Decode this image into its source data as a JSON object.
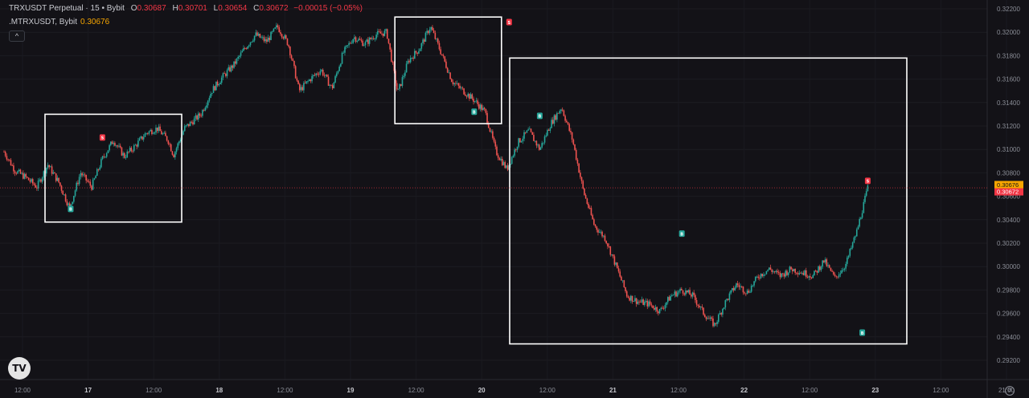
{
  "legend": {
    "symbol": "TRXUSDT Perpetual",
    "interval": "15",
    "exchange": "Bybit",
    "open_label": "O",
    "open": "0.30687",
    "high_label": "H",
    "high": "0.30701",
    "low_label": "L",
    "low": "0.30654",
    "close_label": "C",
    "close": "0.30672",
    "change": "−0.00015 (−0.05%)",
    "indicator": ".MTRXUSDT, Bybit",
    "indicator_value": "0.30676"
  },
  "controls": {
    "collapse_icon": "^",
    "logo_text": "TV",
    "settings_icon": "⚙"
  },
  "colors": {
    "background": "#131217",
    "up": "#26a69a",
    "down": "#ef5350",
    "box": "#ffffff",
    "price_line": "#f23645",
    "indicator_tag": "#f7a600"
  },
  "chart_data": {
    "type": "candlestick",
    "y_ticks": [
      "0.32200",
      "0.32000",
      "0.31800",
      "0.31600",
      "0.31400",
      "0.31200",
      "0.31000",
      "0.30800",
      "0.30600",
      "0.30400",
      "0.30200",
      "0.30000",
      "0.29800",
      "0.29600",
      "0.29400",
      "0.29200"
    ],
    "ylim": [
      0.2912,
      0.3227
    ],
    "x_ticks": [
      {
        "label": "12:00",
        "bold": false
      },
      {
        "label": "17",
        "bold": true
      },
      {
        "label": "12:00",
        "bold": false
      },
      {
        "label": "18",
        "bold": true
      },
      {
        "label": "12:00",
        "bold": false
      },
      {
        "label": "19",
        "bold": true
      },
      {
        "label": "12:00",
        "bold": false
      },
      {
        "label": "20",
        "bold": true
      },
      {
        "label": "12:00",
        "bold": false
      },
      {
        "label": "21",
        "bold": true
      },
      {
        "label": "12:00",
        "bold": false
      },
      {
        "label": "22",
        "bold": true
      },
      {
        "label": "12:00",
        "bold": false
      },
      {
        "label": "23",
        "bold": true
      },
      {
        "label": "12:00",
        "bold": false
      },
      {
        "label": "21:00",
        "bold": false
      }
    ],
    "x_range_hours": [
      0,
      160
    ],
    "path_knots": [
      [
        0,
        0.3098
      ],
      [
        2,
        0.3082
      ],
      [
        4,
        0.3076
      ],
      [
        6,
        0.3068
      ],
      [
        8,
        0.3087
      ],
      [
        10,
        0.3072
      ],
      [
        12,
        0.305
      ],
      [
        14,
        0.308
      ],
      [
        16,
        0.3068
      ],
      [
        18,
        0.3092
      ],
      [
        20,
        0.3108
      ],
      [
        22,
        0.3094
      ],
      [
        24,
        0.3103
      ],
      [
        26,
        0.3114
      ],
      [
        28,
        0.3118
      ],
      [
        30,
        0.3108
      ],
      [
        31,
        0.3095
      ],
      [
        33,
        0.3118
      ],
      [
        36,
        0.313
      ],
      [
        38,
        0.315
      ],
      [
        40,
        0.3162
      ],
      [
        42,
        0.3172
      ],
      [
        44,
        0.3186
      ],
      [
        46,
        0.3198
      ],
      [
        48,
        0.3192
      ],
      [
        50,
        0.3205
      ],
      [
        52,
        0.319
      ],
      [
        54,
        0.315
      ],
      [
        56,
        0.316
      ],
      [
        58,
        0.3168
      ],
      [
        60,
        0.3152
      ],
      [
        62,
        0.3182
      ],
      [
        64,
        0.3196
      ],
      [
        66,
        0.319
      ],
      [
        68,
        0.3198
      ],
      [
        70,
        0.32
      ],
      [
        72,
        0.3148
      ],
      [
        74,
        0.3176
      ],
      [
        76,
        0.3186
      ],
      [
        78,
        0.3205
      ],
      [
        80,
        0.3182
      ],
      [
        82,
        0.3158
      ],
      [
        84,
        0.315
      ],
      [
        86,
        0.3142
      ],
      [
        88,
        0.3132
      ],
      [
        90,
        0.3098
      ],
      [
        92,
        0.3083
      ],
      [
        94,
        0.3106
      ],
      [
        96,
        0.3116
      ],
      [
        98,
        0.31
      ],
      [
        100,
        0.3122
      ],
      [
        102,
        0.3136
      ],
      [
        104,
        0.3108
      ],
      [
        106,
        0.3064
      ],
      [
        108,
        0.3035
      ],
      [
        110,
        0.3024
      ],
      [
        112,
        0.3
      ],
      [
        114,
        0.2975
      ],
      [
        116,
        0.297
      ],
      [
        118,
        0.2968
      ],
      [
        120,
        0.2962
      ],
      [
        122,
        0.2975
      ],
      [
        124,
        0.298
      ],
      [
        126,
        0.2975
      ],
      [
        128,
        0.296
      ],
      [
        130,
        0.295
      ],
      [
        132,
        0.297
      ],
      [
        134,
        0.2985
      ],
      [
        136,
        0.2978
      ],
      [
        138,
        0.2992
      ],
      [
        140,
        0.2998
      ],
      [
        142,
        0.2992
      ],
      [
        144,
        0.2998
      ],
      [
        146,
        0.2995
      ],
      [
        148,
        0.2992
      ],
      [
        150,
        0.3005
      ],
      [
        152,
        0.299
      ],
      [
        154,
        0.3002
      ],
      [
        156,
        0.303
      ],
      [
        158,
        0.3067
      ]
    ],
    "signals": [
      {
        "type": "B",
        "t": 12.2,
        "price": 0.30495
      },
      {
        "type": "S",
        "t": 18.0,
        "price": 0.31105
      },
      {
        "type": "B",
        "t": 86.0,
        "price": 0.31325
      },
      {
        "type": "S",
        "t": 92.4,
        "price": 0.3209
      },
      {
        "type": "B",
        "t": 98.0,
        "price": 0.3129
      },
      {
        "type": "B",
        "t": 124.0,
        "price": 0.30285
      },
      {
        "type": "B",
        "t": 157.0,
        "price": 0.2944
      },
      {
        "type": "S",
        "t": 158.0,
        "price": 0.30735
      }
    ],
    "boxes": [
      {
        "t0": 7.5,
        "t1": 32.5,
        "p_top": 0.313,
        "p_bottom": 0.3038
      },
      {
        "t0": 71.5,
        "t1": 91.0,
        "p_top": 0.3213,
        "p_bottom": 0.3122
      },
      {
        "t0": 92.5,
        "t1": 208.0,
        "p_top": 0.3178,
        "p_bottom": 0.2934
      }
    ],
    "last_price": {
      "value": 0.30672,
      "label": "0.30672"
    },
    "indicator_price": {
      "value": 0.30676,
      "label": "0.30676"
    }
  }
}
